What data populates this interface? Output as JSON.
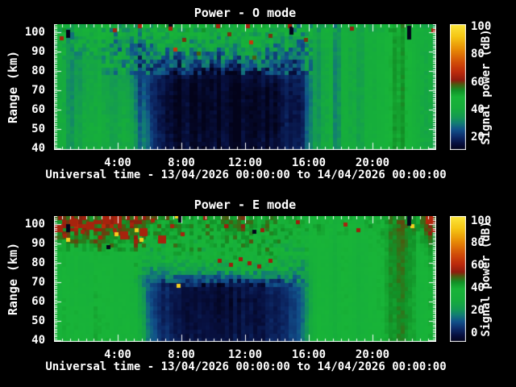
{
  "page": {
    "background": "#000000",
    "text_color": "#ffffff"
  },
  "colormap_stops": [
    [
      0.0,
      "#03031a"
    ],
    [
      0.05,
      "#071040"
    ],
    [
      0.1,
      "#0d2a68"
    ],
    [
      0.16,
      "#11518a"
    ],
    [
      0.21,
      "#127c74"
    ],
    [
      0.26,
      "#149a52"
    ],
    [
      0.33,
      "#16ad3c"
    ],
    [
      0.42,
      "#18b438"
    ],
    [
      0.475,
      "#129027"
    ],
    [
      0.52,
      "#4a5c10"
    ],
    [
      0.555,
      "#8f1c0e"
    ],
    [
      0.62,
      "#bc2a0c"
    ],
    [
      0.7,
      "#d24e08"
    ],
    [
      0.8,
      "#e78a05"
    ],
    [
      0.9,
      "#f5c513"
    ],
    [
      1.0,
      "#fce73c"
    ]
  ],
  "chart_data": [
    {
      "type": "heatmap",
      "title": "Power - O mode",
      "xlabel": "Universal time - 13/04/2026 00:00:00 to 14/04/2026 00:00:00",
      "ylabel": "Range (km)",
      "colorbar_label": "Signal power (dB)",
      "x_range_hours": [
        0,
        24
      ],
      "x_tick_hours": [
        4,
        8,
        12,
        16,
        20
      ],
      "x_tick_labels": [
        "4:00",
        "8:00",
        "12:00",
        "16:00",
        "20:00"
      ],
      "y_range_km": [
        39.2,
        104.2
      ],
      "y_tick_km": [
        40,
        50,
        60,
        70,
        80,
        90,
        100
      ],
      "color_domain_db": [
        10.6,
        101.8
      ],
      "colorbar_ticks_db": [
        20,
        40,
        60,
        80,
        100
      ],
      "grid": {
        "col_hour_centers_step": 1,
        "row_center_km": [
          44,
          52,
          60,
          68,
          76,
          84,
          92,
          100
        ],
        "values_db_rows_bottom_to_top": [
          [
            41,
            39,
            41,
            40,
            41,
            33,
            17,
            14,
            13,
            13,
            13,
            13,
            13,
            14,
            16,
            19,
            39,
            41,
            41,
            41,
            42,
            54,
            47,
            40
          ],
          [
            41,
            39,
            41,
            40,
            41,
            32,
            16,
            13,
            12,
            12,
            12,
            12,
            12,
            13,
            15,
            18,
            38,
            41,
            41,
            41,
            42,
            54,
            47,
            40
          ],
          [
            40,
            38,
            40,
            39,
            40,
            30,
            15,
            13,
            12,
            12,
            12,
            12,
            12,
            13,
            15,
            17,
            38,
            41,
            41,
            41,
            42,
            54,
            47,
            40
          ],
          [
            40,
            37,
            39,
            39,
            39,
            28,
            15,
            13,
            12,
            12,
            12,
            12,
            12,
            13,
            15,
            17,
            38,
            41,
            41,
            41,
            42,
            54,
            47,
            40
          ],
          [
            40,
            36,
            39,
            38,
            37,
            27,
            17,
            14,
            13,
            12,
            12,
            13,
            14,
            15,
            17,
            19,
            38,
            41,
            41,
            41,
            42,
            54,
            47,
            40
          ],
          [
            41,
            36,
            39,
            37,
            35,
            27,
            24,
            22,
            26,
            24,
            22,
            26,
            28,
            27,
            26,
            24,
            38,
            41,
            41,
            41,
            42,
            54,
            47,
            41
          ],
          [
            42,
            38,
            41,
            37,
            34,
            32,
            34,
            36,
            35,
            37,
            34,
            36,
            37,
            35,
            34,
            30,
            39,
            42,
            41,
            41,
            42,
            54,
            47,
            41
          ],
          [
            44,
            41,
            43,
            41,
            39,
            41,
            43,
            41,
            42,
            44,
            41,
            43,
            42,
            41,
            39,
            37,
            41,
            43,
            42,
            41,
            42,
            53,
            47,
            43
          ]
        ]
      },
      "texture": {
        "seed": 11,
        "column_jitter_db": 2.5,
        "cell_jitter_db": 1.5,
        "speckle_zones": [
          {
            "t": [
              3,
              16.3
            ],
            "km": [
              78,
              104.2
            ],
            "amp": 8
          },
          {
            "t": [
              0,
              4
            ],
            "km": [
              86,
              104.2
            ],
            "amp": 6
          },
          {
            "t": [
              0,
              24
            ],
            "km": [
              100,
              104.2
            ],
            "amp": 4
          }
        ],
        "column_dips": [
          {
            "t": 1.05,
            "d": -9
          },
          {
            "t": 3.6,
            "d": -4
          },
          {
            "t": 5.3,
            "d": -5
          },
          {
            "t": 16.6,
            "d": -4
          },
          {
            "t": 17.7,
            "d": -9
          },
          {
            "t": 19.3,
            "d": -6
          },
          {
            "t": 23.2,
            "d": -4
          }
        ]
      },
      "speckles": [
        {
          "t": 0.5,
          "km": 97,
          "db": 64
        },
        {
          "t": 3.8,
          "km": 101,
          "db": 64
        },
        {
          "t": 5.4,
          "km": 103,
          "db": 64
        },
        {
          "t": 7.3,
          "km": 102,
          "db": 64
        },
        {
          "t": 8.2,
          "km": 96,
          "db": 60
        },
        {
          "t": 9.1,
          "km": 89,
          "db": 58
        },
        {
          "t": 10.3,
          "km": 103,
          "db": 64
        },
        {
          "t": 11.0,
          "km": 99,
          "db": 60
        },
        {
          "t": 12.2,
          "km": 103,
          "db": 64
        },
        {
          "t": 12.6,
          "km": 87,
          "db": 58
        },
        {
          "t": 13.6,
          "km": 98,
          "db": 60
        },
        {
          "t": 14.8,
          "km": 103,
          "db": 64
        },
        {
          "t": 15.8,
          "km": 96,
          "db": 60
        },
        {
          "t": 18.7,
          "km": 102,
          "db": 62
        },
        {
          "t": 23.8,
          "km": 101,
          "db": 64
        },
        {
          "t": 7.6,
          "km": 91,
          "db": 70
        },
        {
          "t": 12.4,
          "km": 95,
          "db": 70
        },
        {
          "t": 0.9,
          "km": 99,
          "db": -20,
          "h_km": 4
        },
        {
          "t": 7.3,
          "km": 104,
          "db": -20
        },
        {
          "t": 14.9,
          "km": 101,
          "db": -20,
          "h_km": 4
        },
        {
          "t": 22.3,
          "km": 100,
          "db": -20,
          "h_km": 7
        }
      ]
    },
    {
      "type": "heatmap",
      "title": "Power - E mode",
      "xlabel": "Universal time - 13/04/2026 00:00:00 to 14/04/2026 00:00:00",
      "ylabel": "Range (km)",
      "colorbar_label": "Signal power (dB)",
      "x_range_hours": [
        0,
        24
      ],
      "x_tick_hours": [
        4,
        8,
        12,
        16,
        20
      ],
      "x_tick_labels": [
        "4:00",
        "8:00",
        "12:00",
        "16:00",
        "20:00"
      ],
      "y_range_km": [
        39.2,
        104.2
      ],
      "y_tick_km": [
        40,
        50,
        60,
        70,
        80,
        90,
        100
      ],
      "color_domain_db": [
        -8,
        104
      ],
      "colorbar_ticks_db": [
        0,
        20,
        40,
        60,
        80,
        100
      ],
      "grid": {
        "col_hour_centers_step": 1,
        "row_center_km": [
          44,
          52,
          60,
          68,
          76,
          84,
          92,
          100
        ],
        "values_db_rows_bottom_to_top": [
          [
            39,
            38,
            39,
            38,
            39,
            30,
            8,
            0,
            -2,
            -2,
            -2,
            -2,
            -2,
            0,
            3,
            12,
            36,
            38,
            38,
            38,
            39,
            47,
            42,
            37
          ],
          [
            39,
            38,
            39,
            38,
            39,
            28,
            6,
            -1,
            -3,
            -3,
            -3,
            -3,
            -3,
            -1,
            2,
            10,
            36,
            38,
            38,
            38,
            39,
            47,
            42,
            37
          ],
          [
            38,
            37,
            38,
            38,
            38,
            26,
            5,
            -1,
            -3,
            -4,
            -4,
            -4,
            -3,
            -1,
            2,
            10,
            35,
            38,
            38,
            38,
            39,
            47,
            42,
            37
          ],
          [
            38,
            37,
            38,
            37,
            38,
            25,
            7,
            0,
            -2,
            -3,
            -3,
            -2,
            -1,
            1,
            4,
            12,
            35,
            38,
            38,
            38,
            39,
            48,
            43,
            37
          ],
          [
            38,
            36,
            37,
            37,
            37,
            28,
            24,
            22,
            25,
            24,
            23,
            25,
            27,
            26,
            24,
            20,
            35,
            38,
            38,
            38,
            39,
            48,
            43,
            38
          ],
          [
            39,
            37,
            38,
            37,
            38,
            35,
            34,
            35,
            36,
            38,
            37,
            39,
            38,
            37,
            34,
            30,
            36,
            38,
            38,
            38,
            39,
            48,
            43,
            39
          ],
          [
            45,
            47,
            45,
            48,
            46,
            45,
            40,
            38,
            37,
            39,
            40,
            41,
            39,
            38,
            37,
            35,
            37,
            39,
            38,
            39,
            40,
            49,
            44,
            46
          ],
          [
            52,
            55,
            51,
            56,
            53,
            52,
            46,
            42,
            39,
            44,
            46,
            47,
            44,
            42,
            40,
            38,
            39,
            40,
            39,
            41,
            40,
            49,
            44,
            52
          ]
        ]
      },
      "texture": {
        "seed": 77,
        "column_jitter_db": 2.5,
        "cell_jitter_db": 1.5,
        "speckle_zones": [
          {
            "t": [
              0,
              16
            ],
            "km": [
              86,
              104.2
            ],
            "amp": 7
          },
          {
            "t": [
              5,
              16
            ],
            "km": [
              68,
              92
            ],
            "amp": 7
          },
          {
            "t": [
              16,
              24
            ],
            "km": [
              94,
              104.2
            ],
            "amp": 3
          }
        ],
        "column_dips": [
          {
            "t": 1.7,
            "d": -4
          },
          {
            "t": 5.9,
            "d": -5
          },
          {
            "t": 17.6,
            "d": -6
          },
          {
            "t": 19.1,
            "d": -4
          },
          {
            "t": 23.0,
            "d": -5
          }
        ]
      },
      "speckles": [
        {
          "t": 0.3,
          "km": 98,
          "db": 58,
          "s": 2
        },
        {
          "t": 0.7,
          "km": 94,
          "db": 58
        },
        {
          "t": 1.2,
          "km": 101,
          "db": 58,
          "s": 2
        },
        {
          "t": 1.8,
          "km": 96,
          "db": 58
        },
        {
          "t": 2.3,
          "km": 99,
          "db": 58,
          "s": 2
        },
        {
          "t": 2.9,
          "km": 93,
          "db": 58
        },
        {
          "t": 3.3,
          "km": 102,
          "db": 58,
          "s": 2
        },
        {
          "t": 3.8,
          "km": 97,
          "db": 58
        },
        {
          "t": 4.4,
          "km": 94,
          "db": 58,
          "s": 2
        },
        {
          "t": 4.9,
          "km": 100,
          "db": 58
        },
        {
          "t": 5.6,
          "km": 96,
          "db": 58,
          "s": 2
        },
        {
          "t": 6.2,
          "km": 102,
          "db": 58
        },
        {
          "t": 6.8,
          "km": 92,
          "db": 58,
          "s": 2
        },
        {
          "t": 7.4,
          "km": 99,
          "db": 58
        },
        {
          "t": 8.1,
          "km": 95,
          "db": 58
        },
        {
          "t": 9.5,
          "km": 103,
          "db": 56
        },
        {
          "t": 10.4,
          "km": 81,
          "db": 56
        },
        {
          "t": 10.8,
          "km": 99,
          "db": 56
        },
        {
          "t": 11.1,
          "km": 79,
          "db": 56
        },
        {
          "t": 11.7,
          "km": 82,
          "db": 56
        },
        {
          "t": 12.3,
          "km": 80,
          "db": 56
        },
        {
          "t": 12.9,
          "km": 78,
          "db": 56
        },
        {
          "t": 13.1,
          "km": 97,
          "db": 56
        },
        {
          "t": 13.6,
          "km": 81,
          "db": 56
        },
        {
          "t": 15.3,
          "km": 101,
          "db": 56
        },
        {
          "t": 18.3,
          "km": 100,
          "db": 58
        },
        {
          "t": 19.1,
          "km": 97,
          "db": 56
        },
        {
          "t": 23.6,
          "km": 102,
          "db": 60,
          "s": 2
        },
        {
          "t": 23.8,
          "km": 97,
          "db": 58
        },
        {
          "t": 0.9,
          "km": 92,
          "db": 96
        },
        {
          "t": 3.9,
          "km": 95,
          "db": 96
        },
        {
          "t": 5.2,
          "km": 97,
          "db": 96
        },
        {
          "t": 5.5,
          "km": 92,
          "db": 96
        },
        {
          "t": 7.7,
          "km": 104,
          "db": 96
        },
        {
          "t": 7.8,
          "km": 68,
          "db": 96
        },
        {
          "t": 22.5,
          "km": 99,
          "db": 96
        },
        {
          "t": 0.9,
          "km": 98,
          "db": -25,
          "h_km": 4
        },
        {
          "t": 3.4,
          "km": 88,
          "db": -25
        },
        {
          "t": 7.9,
          "km": 103,
          "db": -25,
          "h_km": 4
        },
        {
          "t": 12.6,
          "km": 96,
          "db": -25
        },
        {
          "t": 22.3,
          "km": 102,
          "db": -25,
          "h_km": 6
        }
      ]
    }
  ]
}
